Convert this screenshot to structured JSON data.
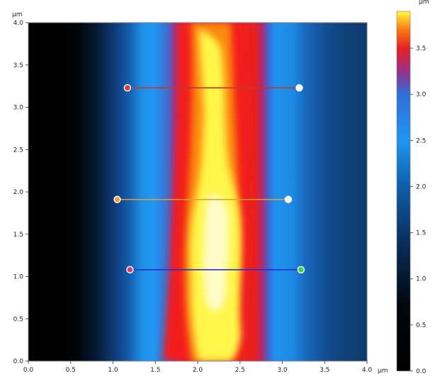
{
  "chart_data": {
    "type": "heatmap",
    "x_unit": "µm",
    "y_unit": "µm",
    "xlim": [
      0,
      4.0
    ],
    "ylim": [
      0,
      4.0
    ],
    "x_ticks": [
      "0.0",
      "0.5",
      "1.0",
      "1.5",
      "2.0",
      "2.5",
      "3.0",
      "3.5",
      "4.0"
    ],
    "y_ticks": [
      "0.0",
      "0.5",
      "1.0",
      "1.5",
      "2.0",
      "2.5",
      "3.0",
      "3.5",
      "4.0"
    ],
    "colorbar": {
      "unit": "µm",
      "range": [
        0.0,
        3.9
      ],
      "ticks": [
        "0.0",
        "0.5",
        "1.0",
        "1.5",
        "2.0",
        "2.5",
        "3.0",
        "3.5"
      ],
      "stops": [
        {
          "v": 0.0,
          "color": "#000000"
        },
        {
          "v": 0.7,
          "color": "#02060c"
        },
        {
          "v": 1.4,
          "color": "#0a2e5c"
        },
        {
          "v": 2.0,
          "color": "#0f5eaa"
        },
        {
          "v": 2.5,
          "color": "#1e96f0"
        },
        {
          "v": 3.0,
          "color": "#2f6fd8"
        },
        {
          "v": 3.25,
          "color": "#9b2f8c"
        },
        {
          "v": 3.5,
          "color": "#e52222"
        },
        {
          "v": 3.7,
          "color": "#f87a10"
        },
        {
          "v": 3.9,
          "color": "#fffd3a"
        }
      ]
    },
    "profile_lines": [
      {
        "color": "#c0392b",
        "x1": 1.17,
        "x2": 3.2,
        "y": 3.23,
        "start_color": "#e23b3b",
        "end_color": "#ffffff"
      },
      {
        "color": "#e0a030",
        "x1": 1.05,
        "x2": 3.07,
        "y": 1.91,
        "start_color": "#f0a040",
        "end_color": "#ffffff"
      },
      {
        "color": "#2233cc",
        "x1": 1.2,
        "x2": 3.22,
        "y": 1.08,
        "start_color": "#d83c6a",
        "end_color": "#40d040"
      }
    ]
  }
}
